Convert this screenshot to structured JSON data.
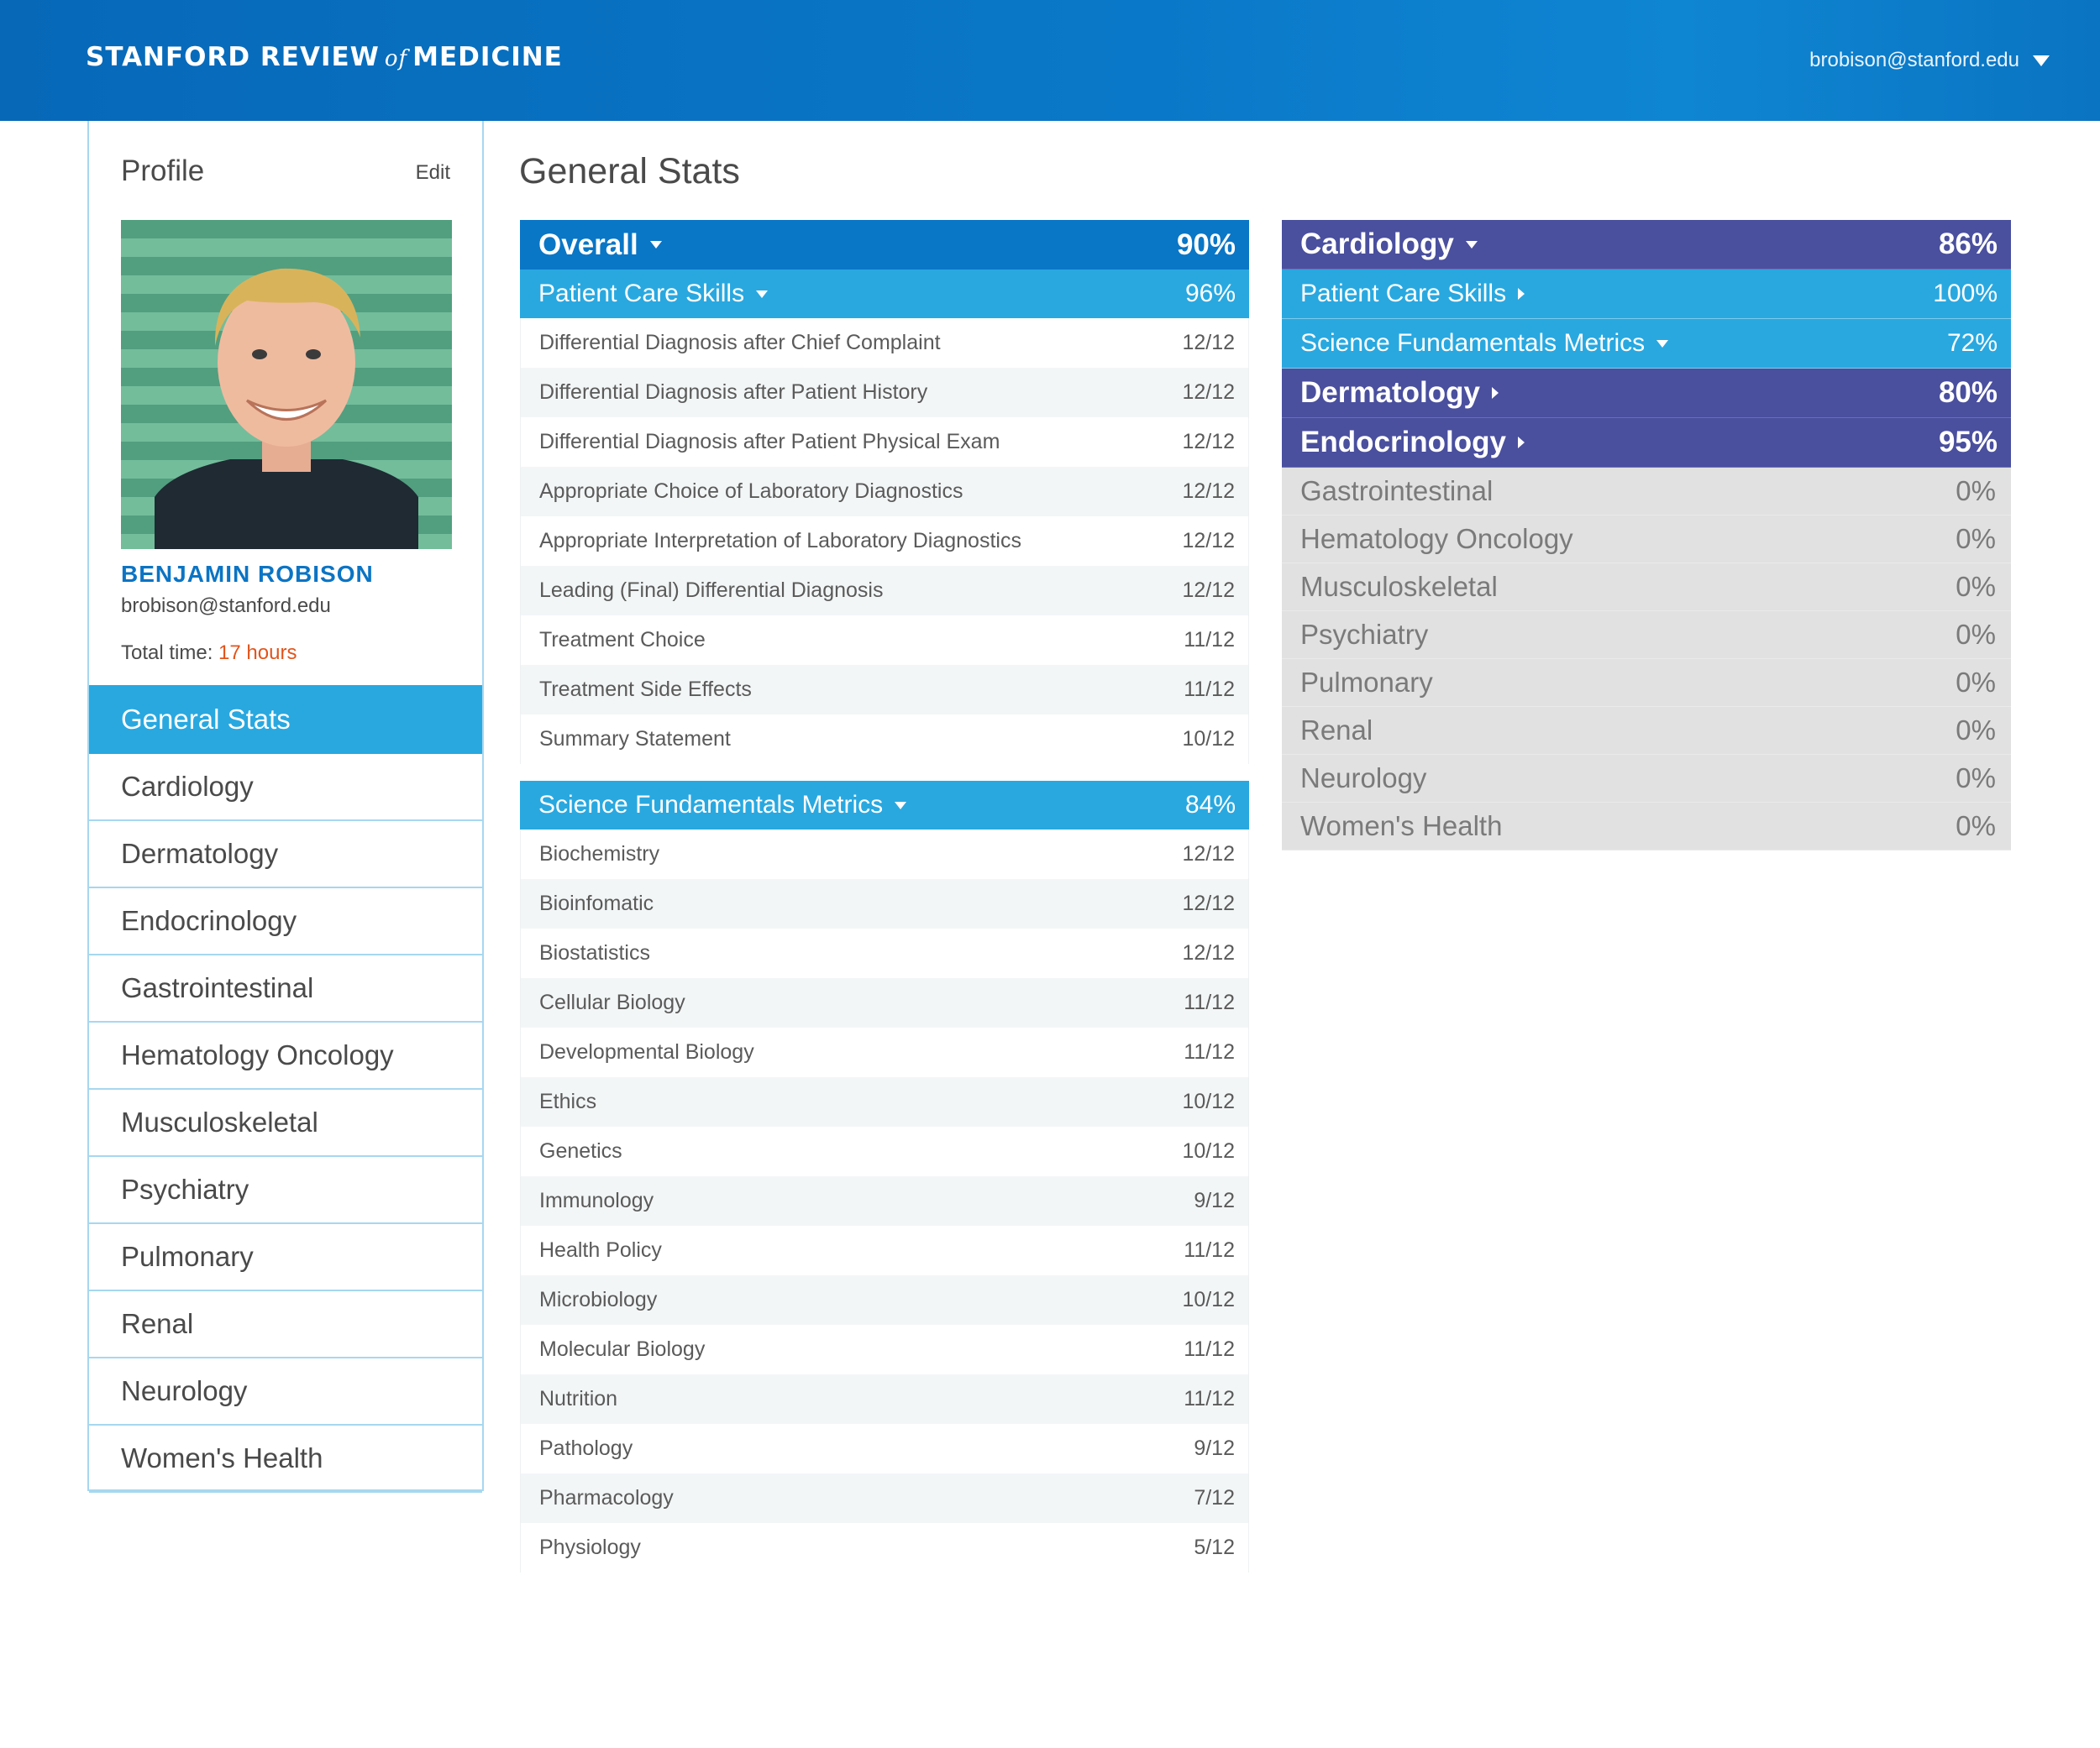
{
  "header": {
    "brand_left": "STANFORD REVIEW",
    "brand_of": "of",
    "brand_right": "MEDICINE",
    "user_email": "brobison@stanford.edu"
  },
  "profile": {
    "title": "Profile",
    "edit_label": "Edit",
    "name": "BENJAMIN ROBISON",
    "email": "brobison@stanford.edu",
    "total_time_label": "Total time:",
    "total_time_value": "17 hours"
  },
  "nav": [
    {
      "label": "General Stats",
      "active": true
    },
    {
      "label": "Cardiology"
    },
    {
      "label": "Dermatology"
    },
    {
      "label": "Endocrinology"
    },
    {
      "label": "Gastrointestinal"
    },
    {
      "label": "Hematology Oncology"
    },
    {
      "label": "Musculoskeletal"
    },
    {
      "label": "Psychiatry"
    },
    {
      "label": "Pulmonary"
    },
    {
      "label": "Renal"
    },
    {
      "label": "Neurology"
    },
    {
      "label": "Women's Health"
    }
  ],
  "main": {
    "title": "General Stats",
    "overall": {
      "label": "Overall",
      "value": "90%"
    },
    "patient_care": {
      "label": "Patient Care Skills",
      "value": "96%",
      "rows": [
        {
          "label": "Differential Diagnosis after Chief Complaint",
          "value": "12/12"
        },
        {
          "label": "Differential Diagnosis after Patient History",
          "value": "12/12"
        },
        {
          "label": "Differential Diagnosis after Patient Physical Exam",
          "value": "12/12"
        },
        {
          "label": "Appropriate Choice of Laboratory Diagnostics",
          "value": "12/12"
        },
        {
          "label": "Appropriate Interpretation of Laboratory Diagnostics",
          "value": "12/12"
        },
        {
          "label": "Leading (Final) Differential Diagnosis",
          "value": "12/12"
        },
        {
          "label": "Treatment Choice",
          "value": "11/12"
        },
        {
          "label": "Treatment Side Effects",
          "value": "11/12"
        },
        {
          "label": "Summary Statement",
          "value": "10/12"
        }
      ]
    },
    "science": {
      "label": "Science Fundamentals Metrics",
      "value": "84%",
      "rows": [
        {
          "label": "Biochemistry",
          "value": "12/12"
        },
        {
          "label": "Bioinfomatic",
          "value": "12/12"
        },
        {
          "label": "Biostatistics",
          "value": "12/12"
        },
        {
          "label": "Cellular Biology",
          "value": "11/12"
        },
        {
          "label": "Developmental Biology",
          "value": "11/12"
        },
        {
          "label": "Ethics",
          "value": "10/12"
        },
        {
          "label": "Genetics",
          "value": "10/12"
        },
        {
          "label": "Immunology",
          "value": "9/12"
        },
        {
          "label": "Health Policy",
          "value": "11/12"
        },
        {
          "label": "Microbiology",
          "value": "10/12"
        },
        {
          "label": "Molecular Biology",
          "value": "11/12"
        },
        {
          "label": "Nutrition",
          "value": "11/12"
        },
        {
          "label": "Pathology",
          "value": "9/12"
        },
        {
          "label": "Pharmacology",
          "value": "7/12"
        },
        {
          "label": "Physiology",
          "value": "5/12"
        }
      ]
    },
    "right": {
      "cardiology": {
        "label": "Cardiology",
        "value": "86%"
      },
      "cardio_patient_care": {
        "label": "Patient Care Skills",
        "value": "100%"
      },
      "cardio_science": {
        "label": "Science Fundamentals Metrics",
        "value": "72%"
      },
      "dermatology": {
        "label": "Dermatology",
        "value": "80%"
      },
      "endocrinology": {
        "label": "Endocrinology",
        "value": "95%"
      },
      "inactive": [
        {
          "label": "Gastrointestinal",
          "value": "0%"
        },
        {
          "label": "Hematology Oncology",
          "value": "0%"
        },
        {
          "label": "Musculoskeletal",
          "value": "0%"
        },
        {
          "label": "Psychiatry",
          "value": "0%"
        },
        {
          "label": "Pulmonary",
          "value": "0%"
        },
        {
          "label": "Renal",
          "value": "0%"
        },
        {
          "label": "Neurology",
          "value": "0%"
        },
        {
          "label": "Women's Health",
          "value": "0%"
        }
      ]
    }
  },
  "colors": {
    "header_blue": "#0a76c6",
    "sub_blue": "#29a8e0",
    "purple": "#4a4f9e",
    "accent_orange": "#e2541b",
    "inactive_grey": "#e1e1e1"
  }
}
